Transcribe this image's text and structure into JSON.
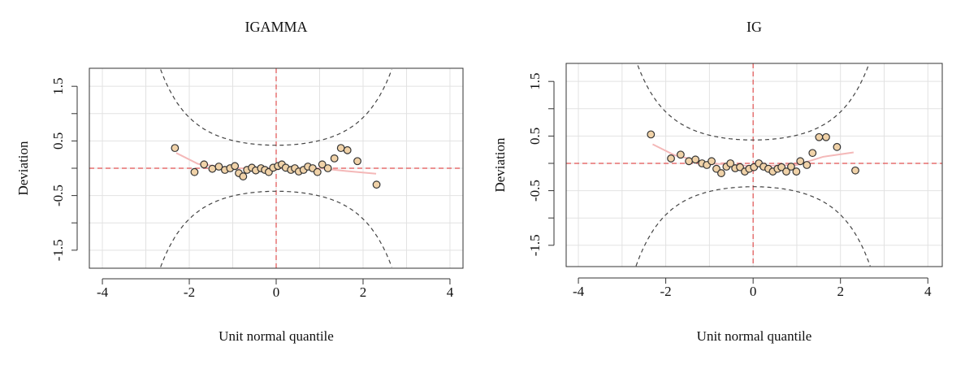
{
  "chart_data": [
    {
      "type": "scatter",
      "title": "IGAMMA",
      "xlabel": "Unit normal quantile",
      "ylabel": "Deviation",
      "xlim": [
        -4.3,
        4.3
      ],
      "ylim": [
        -1.83,
        1.83
      ],
      "xticks": [
        -4,
        -2,
        0,
        2,
        4
      ],
      "xminor": [
        -3,
        -1,
        1,
        3
      ],
      "yticks": [
        -1.5,
        -0.5,
        0.5,
        1.5
      ],
      "yminor": [
        -1,
        0,
        1
      ],
      "grid": true,
      "point_color": "#f0d2a8",
      "fit_color": "#f4b8b8",
      "ref_color": "#e05050",
      "band_color": "#444",
      "x": [
        -2.33,
        -1.88,
        -1.66,
        -1.47,
        -1.32,
        -1.18,
        -1.06,
        -0.95,
        -0.86,
        -0.76,
        -0.67,
        -0.56,
        -0.47,
        -0.35,
        -0.26,
        -0.17,
        -0.07,
        0.04,
        0.13,
        0.22,
        0.34,
        0.43,
        0.52,
        0.63,
        0.73,
        0.84,
        0.95,
        1.06,
        1.19,
        1.34,
        1.49,
        1.64,
        1.87,
        2.31
      ],
      "values": [
        0.37,
        -0.07,
        0.07,
        -0.01,
        0.03,
        -0.03,
        0,
        0.04,
        -0.09,
        -0.15,
        -0.03,
        0.01,
        -0.04,
        0,
        -0.03,
        -0.07,
        0.01,
        0.04,
        0.07,
        0.01,
        -0.03,
        0,
        -0.06,
        -0.03,
        0.03,
        0,
        -0.07,
        0.07,
        0,
        0.18,
        0.37,
        0.33,
        0.13,
        -0.3
      ],
      "fit": {
        "x": [
          -2.3,
          -1.8,
          -1,
          0,
          1,
          1.6,
          2.3
        ],
        "values": [
          0.28,
          0.08,
          0.0,
          0.0,
          0.0,
          -0.05,
          -0.1
        ]
      }
    },
    {
      "type": "scatter",
      "title": "IG",
      "xlabel": "Unit normal quantile",
      "ylabel": "Deviation",
      "xlim": [
        -4.28,
        4.33
      ],
      "ylim": [
        -1.89,
        1.83
      ],
      "xticks": [
        -4,
        -2,
        0,
        2,
        4
      ],
      "xminor": [
        -3,
        -1,
        1,
        3
      ],
      "yticks": [
        -1.5,
        -0.5,
        0.5,
        1.5
      ],
      "yminor": [
        -1,
        0,
        1
      ],
      "grid": true,
      "point_color": "#f0d2a8",
      "fit_color": "#f4b8b8",
      "ref_color": "#e05050",
      "band_color": "#444",
      "x": [
        -2.34,
        -1.88,
        -1.66,
        -1.47,
        -1.32,
        -1.17,
        -1.06,
        -0.95,
        -0.84,
        -0.73,
        -0.61,
        -0.52,
        -0.41,
        -0.3,
        -0.19,
        -0.09,
        0.02,
        0.13,
        0.24,
        0.35,
        0.45,
        0.56,
        0.65,
        0.76,
        0.87,
        0.99,
        1.08,
        1.23,
        1.36,
        1.51,
        1.67,
        1.92,
        2.34
      ],
      "values": [
        0.53,
        0.09,
        0.16,
        0.04,
        0.07,
        0,
        -0.03,
        0.04,
        -0.1,
        -0.18,
        -0.06,
        0,
        -0.09,
        -0.07,
        -0.15,
        -0.1,
        -0.07,
        0,
        -0.06,
        -0.1,
        -0.15,
        -0.1,
        -0.07,
        -0.15,
        -0.06,
        -0.15,
        0.04,
        -0.03,
        0.19,
        0.48,
        0.48,
        0.3,
        -0.13
      ],
      "fit": {
        "x": [
          -2.3,
          -1.8,
          -1,
          0,
          1,
          1.6,
          2.3
        ],
        "values": [
          0.35,
          0.15,
          0.0,
          -0.05,
          -0.03,
          0.12,
          0.2
        ]
      }
    }
  ]
}
